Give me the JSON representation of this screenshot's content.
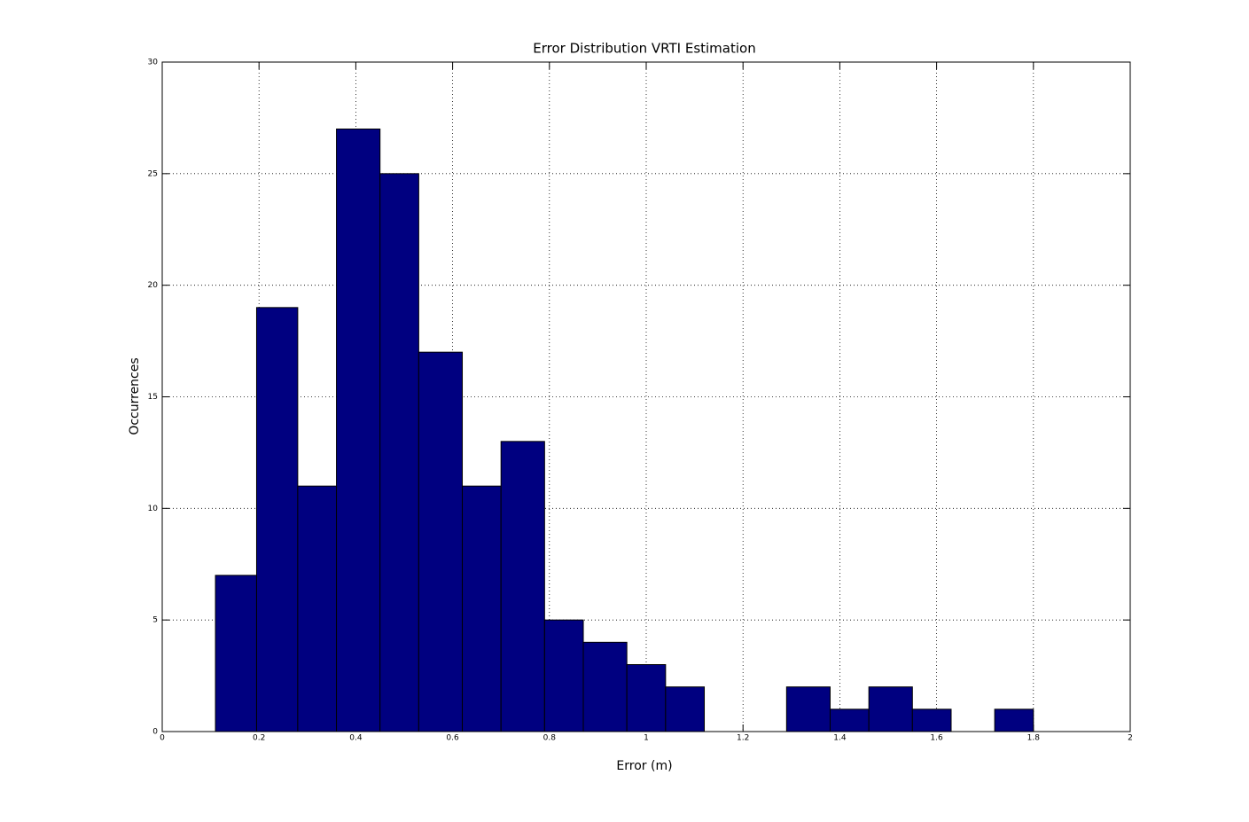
{
  "chart_data": {
    "type": "histogram",
    "title": "Error Distribution VRTI Estimation",
    "x_label": "Error (m)",
    "y_label": "Occurrences",
    "bins": [
      0.11,
      0.195,
      0.28,
      0.36,
      0.45,
      0.53,
      0.62,
      0.7,
      0.79,
      0.87,
      0.96,
      1.04,
      1.12,
      1.21,
      1.29,
      1.38,
      1.46,
      1.55,
      1.63,
      1.72,
      1.8
    ],
    "counts": [
      7,
      19,
      11,
      27,
      25,
      17,
      11,
      13,
      5,
      4,
      3,
      2,
      0,
      0,
      2,
      1,
      2,
      1,
      0,
      1
    ],
    "color": "#000080",
    "edge_color": "#000000",
    "xlim": [
      0,
      2
    ],
    "xticks": [
      0,
      0.2,
      0.4,
      0.6,
      0.8,
      1,
      1.2,
      1.4,
      1.6,
      1.8,
      2
    ],
    "ylim": [
      0,
      30
    ],
    "yticks": [
      0,
      5,
      10,
      15,
      20,
      25,
      30
    ],
    "grid": true
  }
}
